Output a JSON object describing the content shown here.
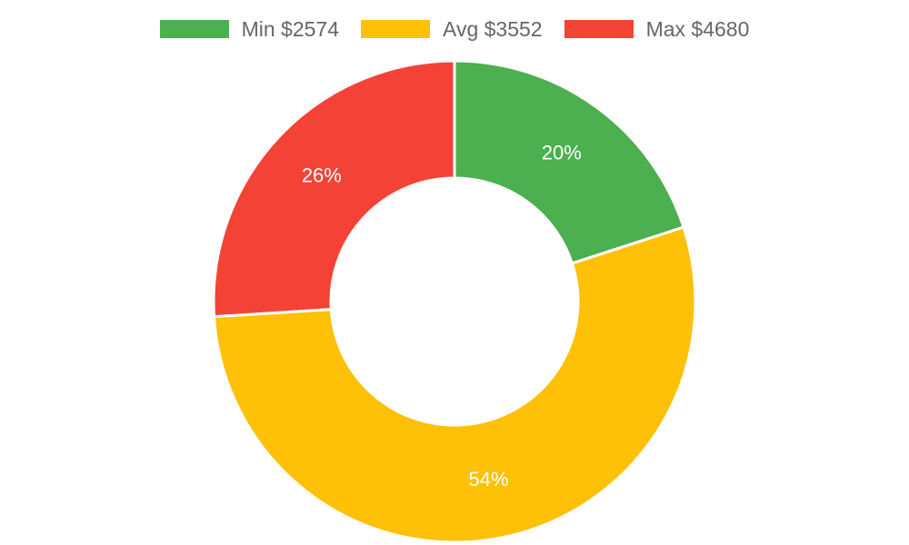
{
  "chart_data": {
    "type": "pie",
    "variant": "doughnut",
    "legend_position": "top",
    "slices": [
      {
        "legend_label": "Min $2574",
        "value": 20,
        "label": "20%",
        "color": "#4caf50"
      },
      {
        "legend_label": "Avg $3552",
        "value": 54,
        "label": "54%",
        "color": "#ffc107"
      },
      {
        "legend_label": "Max $4680",
        "value": 26,
        "label": "26%",
        "color": "#f44336"
      }
    ]
  }
}
